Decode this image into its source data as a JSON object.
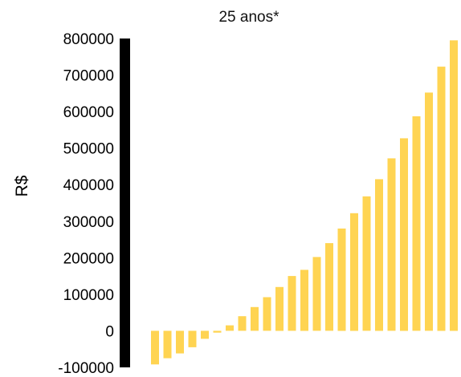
{
  "chart_data": {
    "type": "bar",
    "title": "25 anos*",
    "ylabel": "R$",
    "xlabel": "",
    "ylim": [
      -100000,
      800000
    ],
    "yticks": [
      "800000",
      "700000",
      "600000",
      "500000",
      "400000",
      "300000",
      "200000",
      "100000",
      "0",
      "-100000"
    ],
    "ytick_values": [
      800000,
      700000,
      600000,
      500000,
      400000,
      300000,
      200000,
      100000,
      0,
      -100000
    ],
    "grid": false,
    "legend": "none",
    "bar_color": "#ffd452",
    "axis_color": "#000000",
    "values": [
      -92000,
      -75000,
      -62000,
      -45000,
      -22000,
      -5000,
      15000,
      40000,
      65000,
      92000,
      120000,
      150000,
      167000,
      202000,
      240000,
      280000,
      322000,
      368000,
      415000,
      472000,
      527000,
      587000,
      652000,
      723000,
      795000
    ]
  }
}
